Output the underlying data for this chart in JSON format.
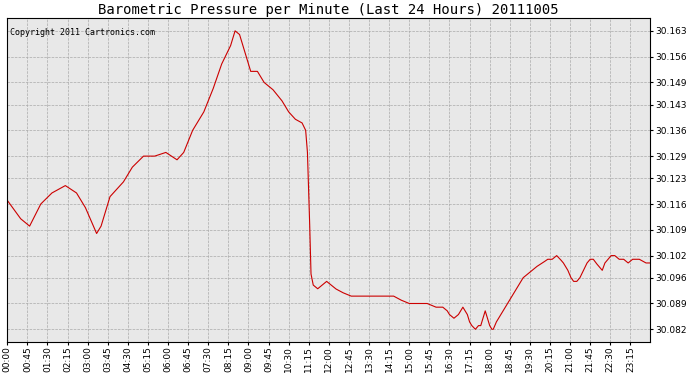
{
  "title": "Barometric Pressure per Minute (Last 24 Hours) 20111005",
  "copyright": "Copyright 2011 Cartronics.com",
  "line_color": "#cc0000",
  "bg_color": "#ffffff",
  "plot_bg_color": "#e8e8e8",
  "grid_color": "#aaaaaa",
  "yticks": [
    30.082,
    30.089,
    30.096,
    30.102,
    30.109,
    30.116,
    30.123,
    30.129,
    30.136,
    30.143,
    30.149,
    30.156,
    30.163
  ],
  "ylim": [
    30.0785,
    30.1665
  ],
  "xtick_labels": [
    "00:00",
    "00:45",
    "01:30",
    "02:15",
    "03:00",
    "03:45",
    "04:30",
    "05:15",
    "06:00",
    "06:45",
    "07:30",
    "08:15",
    "09:00",
    "09:45",
    "10:30",
    "11:15",
    "12:00",
    "12:45",
    "13:30",
    "14:15",
    "15:00",
    "15:45",
    "16:30",
    "17:15",
    "18:00",
    "18:45",
    "19:30",
    "20:15",
    "21:00",
    "21:45",
    "22:30",
    "23:15"
  ],
  "title_fontsize": 10,
  "tick_fontsize": 6.5,
  "copyright_fontsize": 6
}
